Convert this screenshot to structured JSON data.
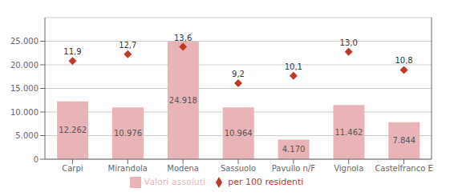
{
  "chart_data": {
    "type": "bar",
    "categories": [
      "Carpi",
      "Mirandola",
      "Modena",
      "Sassuolo",
      "Pavullo n/F",
      "Vignola",
      "Castelfranco E"
    ],
    "series": [
      {
        "name": "Valori assoluti",
        "type": "bar",
        "color": "#e8b4b8",
        "values": [
          12262,
          10976,
          24918,
          10964,
          4170,
          11462,
          7844
        ],
        "value_labels": [
          "12.262",
          "10.976",
          "24.918",
          "10.964",
          "4.170",
          "11.462",
          "7.844"
        ]
      },
      {
        "name": "per 100 residenti",
        "type": "scatter",
        "axis": "y2",
        "marker": "diamond",
        "color": "#c0392b",
        "values": [
          11.9,
          12.7,
          13.6,
          9.2,
          10.1,
          13.0,
          10.8
        ],
        "value_labels": [
          "11,9",
          "12,7",
          "13,6",
          "9,2",
          "10,1",
          "13,0",
          "10,8"
        ]
      }
    ],
    "ylim": [
      0,
      30000
    ],
    "yticks": [
      0,
      {
        "value": 5000,
        "label": "5.000"
      },
      {
        "value": 10000,
        "label": "10.000"
      },
      {
        "value": 15000,
        "label": "15.000"
      },
      {
        "value": 20000,
        "label": "20.000"
      },
      {
        "value": 25000,
        "label": "25.000"
      }
    ],
    "y2lim": [
      0,
      17.143
    ],
    "y2ticks": [],
    "grid": true,
    "legend": "bottom",
    "data_labels": true
  }
}
